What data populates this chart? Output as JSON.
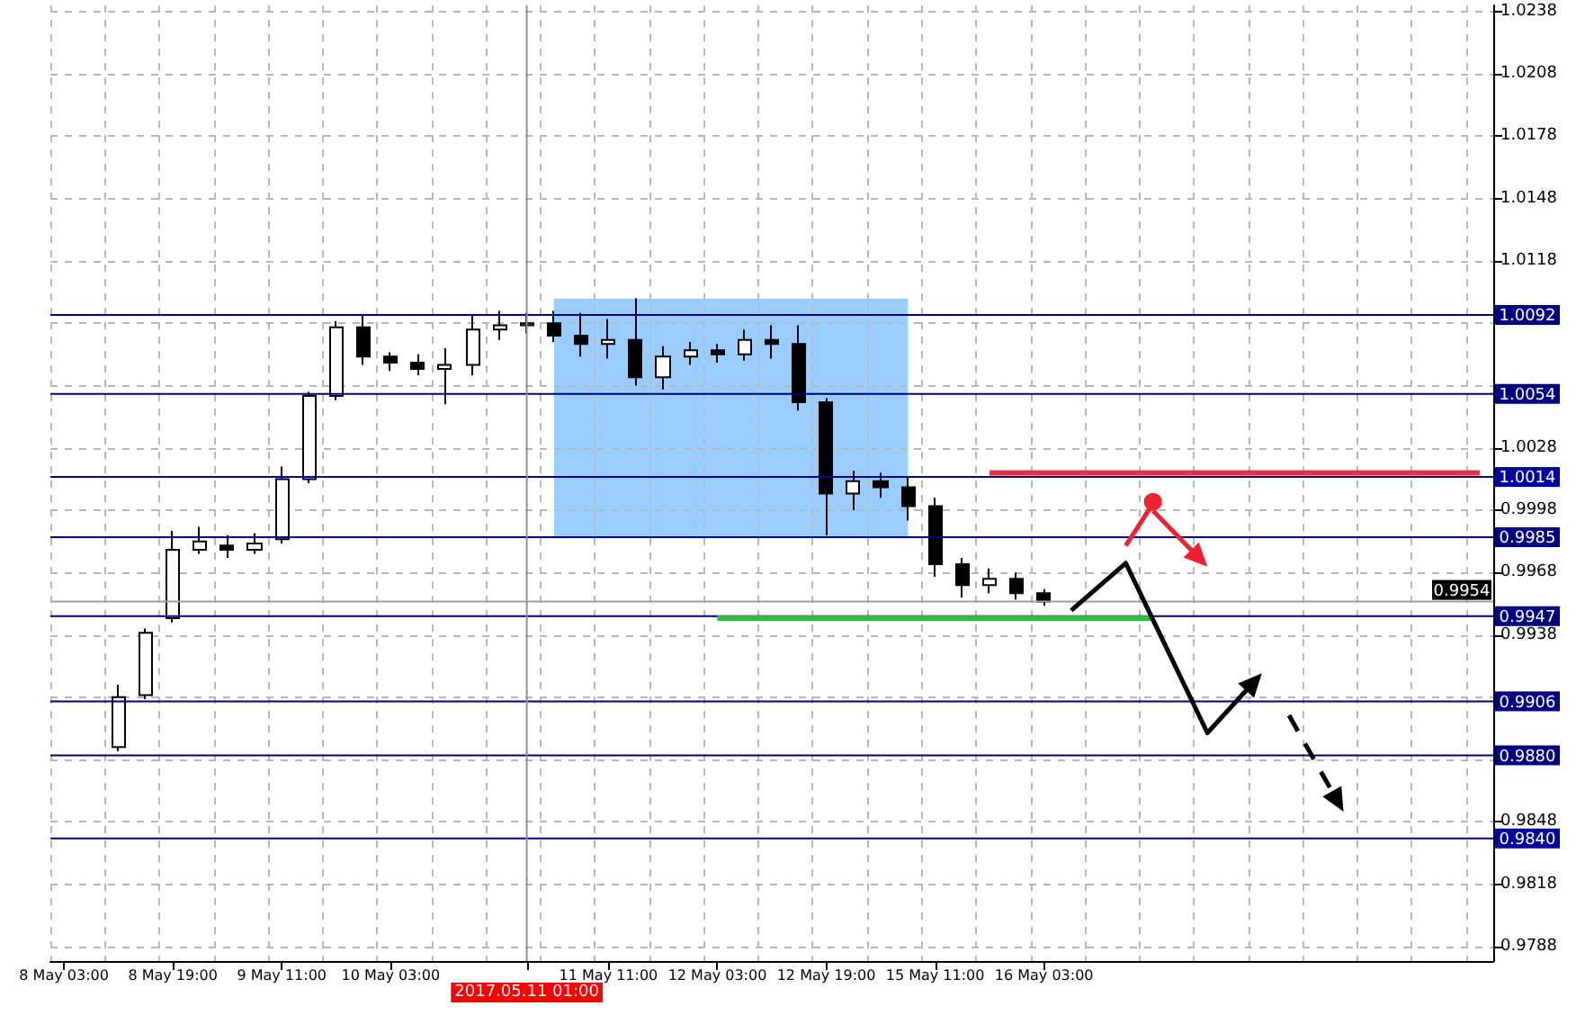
{
  "chart_data": {
    "type": "candlestick",
    "categories": [
      "8 May 03:00",
      null,
      null,
      null,
      "8 May 19:00",
      null,
      null,
      null,
      "9 May 11:00",
      null,
      null,
      null,
      "10 May 03:00",
      null,
      null,
      null,
      null,
      "2017.05.11 01:00",
      null,
      null,
      "11 May 11:00",
      null,
      null,
      null,
      "12 May 03:00",
      null,
      null,
      null,
      "12 May 19:00",
      null,
      null,
      null,
      "15 May 11:00",
      null,
      null,
      null,
      "16 May 03:00",
      null,
      null,
      null,
      null,
      null,
      null,
      null,
      null,
      null,
      null,
      null,
      null,
      null,
      null,
      null,
      null
    ],
    "ohlc": [
      null,
      null,
      [
        0.9884,
        0.9914,
        0.9882,
        0.9908
      ],
      [
        0.9909,
        0.9941,
        0.9907,
        0.9939
      ],
      [
        0.9946,
        0.9988,
        0.9944,
        0.9979
      ],
      [
        0.9979,
        0.999,
        0.9977,
        0.9983
      ],
      [
        0.9981,
        0.9986,
        0.9975,
        0.9979
      ],
      [
        0.9979,
        0.9987,
        0.9977,
        0.9982
      ],
      [
        0.9984,
        1.0019,
        0.9982,
        1.0013
      ],
      [
        1.0013,
        1.0055,
        1.0011,
        1.0053
      ],
      [
        1.0053,
        1.0089,
        1.0051,
        1.0086
      ],
      [
        1.0086,
        1.0092,
        1.0068,
        1.0072
      ],
      [
        1.0072,
        1.0074,
        1.0065,
        1.0069
      ],
      [
        1.0069,
        1.0073,
        1.0063,
        1.0066
      ],
      [
        1.0066,
        1.0076,
        1.0049,
        1.0068
      ],
      [
        1.0068,
        1.0092,
        1.0063,
        1.0085
      ],
      [
        1.0085,
        1.0094,
        1.008,
        1.0087
      ],
      [
        1.0087,
        1.0093,
        1.0083,
        1.0088
      ],
      [
        1.0088,
        1.0094,
        1.0079,
        1.0082
      ],
      [
        1.0082,
        1.0093,
        1.0072,
        1.0078
      ],
      [
        1.0078,
        1.009,
        1.0071,
        1.008
      ],
      [
        1.008,
        1.01,
        1.0058,
        1.0062
      ],
      [
        1.0062,
        1.0077,
        1.0056,
        1.0072
      ],
      [
        1.0072,
        1.0079,
        1.0068,
        1.0075
      ],
      [
        1.0075,
        1.0078,
        1.0069,
        1.0073
      ],
      [
        1.0073,
        1.0085,
        1.007,
        1.008
      ],
      [
        1.008,
        1.0087,
        1.0071,
        1.0078
      ],
      [
        1.0078,
        1.0087,
        1.0046,
        1.005
      ],
      [
        1.005,
        1.0052,
        0.9986,
        1.0006
      ],
      [
        1.0006,
        1.0017,
        0.9998,
        1.0012
      ],
      [
        1.0012,
        1.0016,
        1.0004,
        1.0009
      ],
      [
        1.0009,
        1.0014,
        0.9993,
        1.0
      ],
      [
        1.0,
        1.0004,
        0.9966,
        0.9972
      ],
      [
        0.9972,
        0.9975,
        0.9956,
        0.9962
      ],
      [
        0.9962,
        0.997,
        0.9958,
        0.9965
      ],
      [
        0.9965,
        0.9968,
        0.9955,
        0.9958
      ],
      [
        0.9958,
        0.996,
        0.9952,
        0.9954
      ],
      null,
      null,
      null,
      null,
      null,
      null,
      null,
      null,
      null,
      null,
      null,
      null,
      null,
      null,
      null,
      null
    ],
    "ylim": [
      0.9781,
      1.0241
    ],
    "yticks": [
      0.9788,
      0.9818,
      0.9848,
      {
        "value": 0.9878,
        "label": null
      },
      {
        "value": 0.9908,
        "label": null
      },
      0.9938,
      0.9968,
      0.9998,
      1.0028,
      {
        "value": 1.0058,
        "label": null
      },
      {
        "value": 1.0088,
        "label": null
      },
      1.0118,
      1.0148,
      1.0178,
      1.0208,
      1.0238
    ],
    "grid": true,
    "ref_lines": [
      {
        "axis": "y",
        "value": 1.0092,
        "label": "1.0092",
        "color": "#000080"
      },
      {
        "axis": "y",
        "value": 1.0054,
        "label": "1.0054",
        "color": "#000080"
      },
      {
        "axis": "y",
        "value": 1.0014,
        "label": "1.0014",
        "color": "#0000a0"
      },
      {
        "axis": "y",
        "value": 0.9985,
        "label": "0.9985",
        "color": "#000080"
      },
      {
        "axis": "y",
        "value": 0.9954,
        "label": "0.9954",
        "color": "#a0a0a0"
      },
      {
        "axis": "y",
        "value": 0.9947,
        "label": "0.9947",
        "color": "#000080"
      },
      {
        "axis": "y",
        "value": 0.9906,
        "label": "0.9906",
        "color": "#000080"
      },
      {
        "axis": "y",
        "value": 0.988,
        "label": "0.9880",
        "color": "#000080"
      },
      {
        "axis": "y",
        "value": 0.984,
        "label": "0.9840",
        "color": "#0000a0"
      },
      {
        "axis": "x",
        "value": "2017.05.11 01:00",
        "color": "#909090"
      }
    ]
  }
}
